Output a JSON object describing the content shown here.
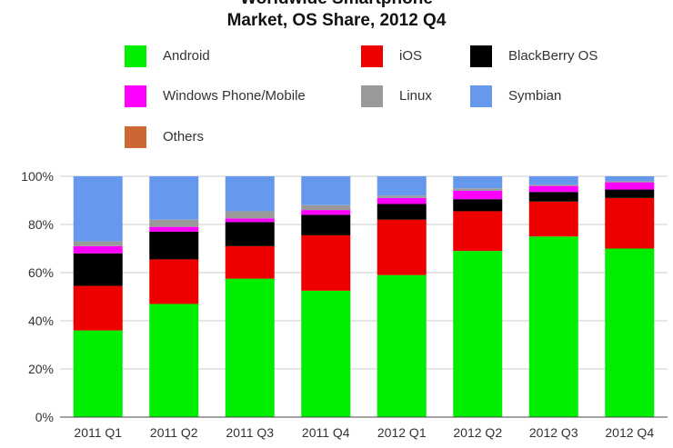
{
  "chart_data": {
    "type": "bar",
    "stacked": true,
    "title_line1": "Worldwide Smartphone",
    "title_line2": "Market, OS Share, 2012 Q4",
    "categories": [
      "2011 Q1",
      "2011 Q2",
      "2011 Q3",
      "2011 Q4",
      "2012 Q1",
      "2012 Q2",
      "2012 Q3",
      "2012 Q4"
    ],
    "series": [
      {
        "name": "Android",
        "color": "#00ee00",
        "values": [
          36,
          47,
          57.5,
          52.5,
          59,
          69,
          75,
          70
        ]
      },
      {
        "name": "iOS",
        "color": "#ee0000",
        "values": [
          18.5,
          18.5,
          13.5,
          23,
          23,
          16.5,
          14.5,
          21
        ]
      },
      {
        "name": "BlackBerry OS",
        "color": "#000000",
        "values": [
          13.5,
          11.5,
          10,
          8.5,
          6.5,
          5,
          4,
          3.5
        ]
      },
      {
        "name": "Windows Phone/Mobile",
        "color": "#ff00ff",
        "values": [
          3,
          2,
          1.5,
          2,
          2.5,
          3.5,
          2.5,
          3
        ]
      },
      {
        "name": "Linux",
        "color": "#999999",
        "values": [
          2,
          3,
          3,
          2,
          1,
          1,
          0.5,
          0.5
        ]
      },
      {
        "name": "Symbian",
        "color": "#6699ee",
        "values": [
          27,
          18,
          14.5,
          12,
          8,
          5,
          3.5,
          2
        ]
      },
      {
        "name": "Others",
        "color": "#cc6633",
        "values": [
          0,
          0,
          0,
          0,
          0,
          0,
          0,
          0
        ]
      }
    ],
    "ylim": [
      0,
      100
    ],
    "yticks": [
      "0%",
      "20%",
      "40%",
      "60%",
      "80%",
      "100%"
    ],
    "xlabel": "",
    "ylabel": "",
    "legend": "top",
    "grid": true
  }
}
